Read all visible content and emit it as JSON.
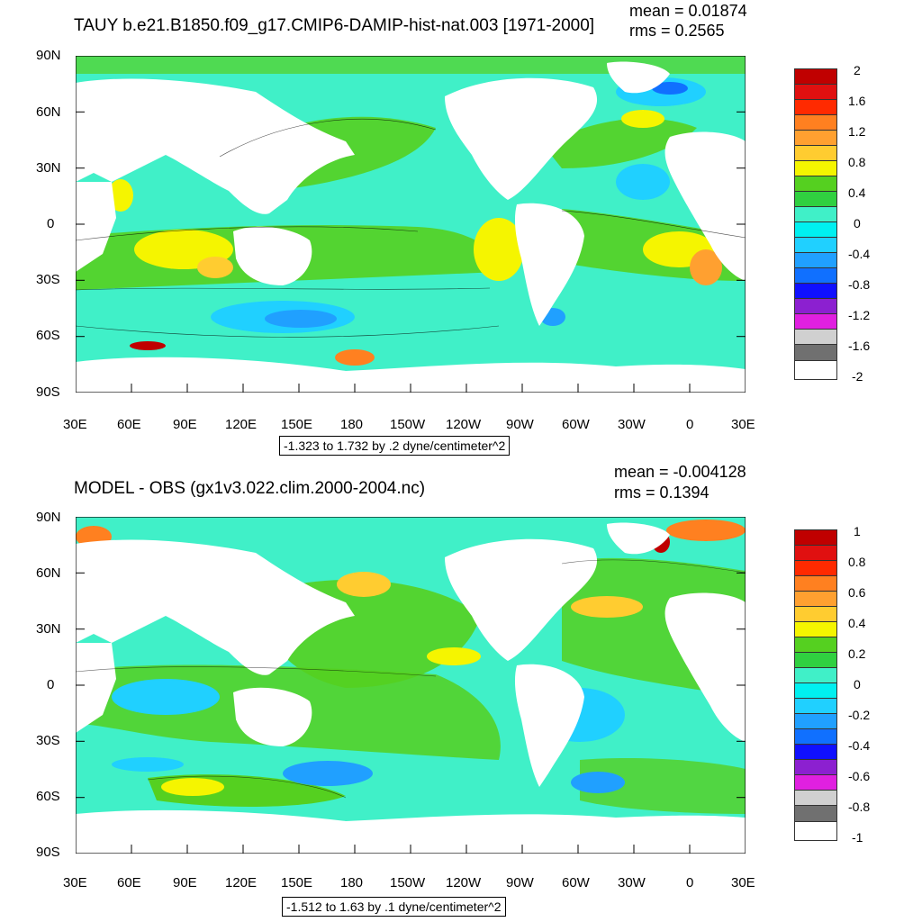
{
  "panels": [
    {
      "title": "TAUY b.e21.B1850.f09_g17.CMIP6-DAMIP-hist-nat.003 [1971-2000]",
      "mean_label": "mean = 0.01874",
      "rms_label": "rms = 0.2565",
      "lat_labels": [
        "90N",
        "60N",
        "30N",
        "0",
        "30S",
        "60S",
        "90S"
      ],
      "lon_labels": [
        "30E",
        "60E",
        "90E",
        "120E",
        "150E",
        "180",
        "150W",
        "120W",
        "90W",
        "60W",
        "30W",
        "0",
        "30E"
      ],
      "colorbar_labels": [
        "2",
        "1.6",
        "1.2",
        "0.8",
        "0.4",
        "0",
        "-0.4",
        "-0.8",
        "-1.2",
        "-1.6",
        "-2"
      ],
      "contour_info": "-1.323 to 1.732 by .2 dyne/centimeter^2"
    },
    {
      "title": "MODEL - OBS (gx1v3.022.clim.2000-2004.nc)",
      "mean_label": "mean = -0.004128",
      "rms_label": "rms = 0.1394",
      "lat_labels": [
        "90N",
        "60N",
        "30N",
        "0",
        "30S",
        "60S",
        "90S"
      ],
      "lon_labels": [
        "30E",
        "60E",
        "90E",
        "120E",
        "150E",
        "180",
        "150W",
        "120W",
        "90W",
        "60W",
        "30W",
        "0",
        "30E"
      ],
      "colorbar_labels": [
        "1",
        "0.8",
        "0.6",
        "0.4",
        "0.2",
        "0",
        "-0.2",
        "-0.4",
        "-0.6",
        "-0.8",
        "-1"
      ],
      "contour_info": "-1.512 to 1.63 by .1 dyne/centimeter^2"
    }
  ],
  "colors": {
    "scale": [
      "#c00000",
      "#e01010",
      "#ff2a00",
      "#ff8020",
      "#ffa030",
      "#ffcc30",
      "#f5f500",
      "#55d020",
      "#30d040",
      "#40f0c8",
      "#00f0f0",
      "#20d0ff",
      "#20a0ff",
      "#1070ff",
      "#1010ff",
      "#8c20d0",
      "#e020e0",
      "#d0d0d0",
      "#707070"
    ],
    "ocean_base": "#40f0c8",
    "land": "#ffffff"
  }
}
